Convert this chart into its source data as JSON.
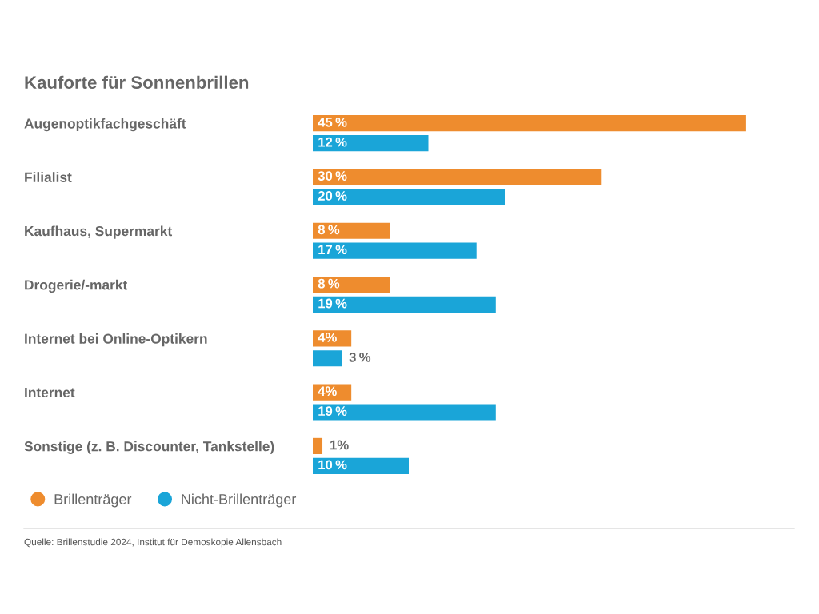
{
  "chart_data": {
    "type": "bar",
    "orientation": "horizontal",
    "title": "Kauforte für Sonnenbrillen",
    "categories": [
      "Augenoptikfachgeschäft",
      "Filialist",
      "Kaufhaus, Supermarkt",
      "Drogerie/-markt",
      "Internet bei Online-Optikern",
      "Internet",
      "Sonstige (z. B. Discounter, Tankstelle)"
    ],
    "series": [
      {
        "name": "Brillenträger",
        "color": "#ee8c2e",
        "values": [
          45,
          30,
          8,
          8,
          4,
          4,
          1
        ],
        "value_labels": [
          "45 %",
          "30 %",
          "8 %",
          "8 %",
          "4%",
          "4%",
          "1%"
        ]
      },
      {
        "name": "Nicht-Brillenträger",
        "color": "#1aa5d8",
        "values": [
          12,
          20,
          17,
          19,
          3,
          19,
          10
        ],
        "value_labels": [
          "12 %",
          "20 %",
          "17 %",
          "19 %",
          "3 %",
          "19 %",
          "10 %"
        ]
      }
    ],
    "tick_labels": "y",
    "legend": "bottom",
    "annotations": [
      "Quelle: Brillenstudie 2024, Institut für Demoskopie Allensbach"
    ]
  }
}
